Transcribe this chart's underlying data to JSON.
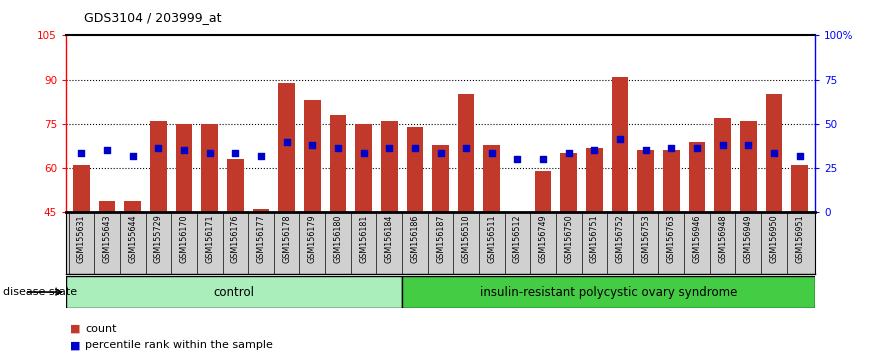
{
  "title": "GDS3104 / 203999_at",
  "samples": [
    "GSM155631",
    "GSM155643",
    "GSM155644",
    "GSM155729",
    "GSM156170",
    "GSM156171",
    "GSM156176",
    "GSM156177",
    "GSM156178",
    "GSM156179",
    "GSM156180",
    "GSM156181",
    "GSM156184",
    "GSM156186",
    "GSM156187",
    "GSM156510",
    "GSM156511",
    "GSM156512",
    "GSM156749",
    "GSM156750",
    "GSM156751",
    "GSM156752",
    "GSM156753",
    "GSM156763",
    "GSM156946",
    "GSM156948",
    "GSM156949",
    "GSM156950",
    "GSM156951"
  ],
  "bar_values": [
    61,
    49,
    49,
    76,
    75,
    75,
    63,
    46,
    89,
    83,
    78,
    75,
    76,
    74,
    68,
    85,
    68,
    45,
    59,
    65,
    67,
    91,
    66,
    66,
    69,
    77,
    76,
    85,
    61
  ],
  "dot_left": [
    65,
    66,
    64,
    67,
    66,
    65,
    65,
    64,
    69,
    68,
    67,
    65,
    67,
    67,
    65,
    67,
    65,
    63,
    63,
    65,
    66,
    70,
    66,
    67,
    67,
    68,
    68,
    65,
    64
  ],
  "n_control": 13,
  "ylim_left": [
    45,
    105
  ],
  "ylim_right": [
    0,
    100
  ],
  "yticks_left": [
    45,
    60,
    75,
    90,
    105
  ],
  "yticks_right": [
    0,
    25,
    50,
    75,
    100
  ],
  "ytick_labels_right": [
    "0",
    "25",
    "50",
    "75",
    "100%"
  ],
  "bar_color": "#C0392B",
  "dot_color": "#0000CC",
  "control_color": "#AAEEBB",
  "disease_color": "#44CC44",
  "xlabel_bg": "#D0D0D0",
  "legend_count_label": "count",
  "legend_pct_label": "percentile rank within the sample",
  "group1_label": "control",
  "group2_label": "insulin-resistant polycystic ovary syndrome",
  "disease_state_label": "disease state"
}
